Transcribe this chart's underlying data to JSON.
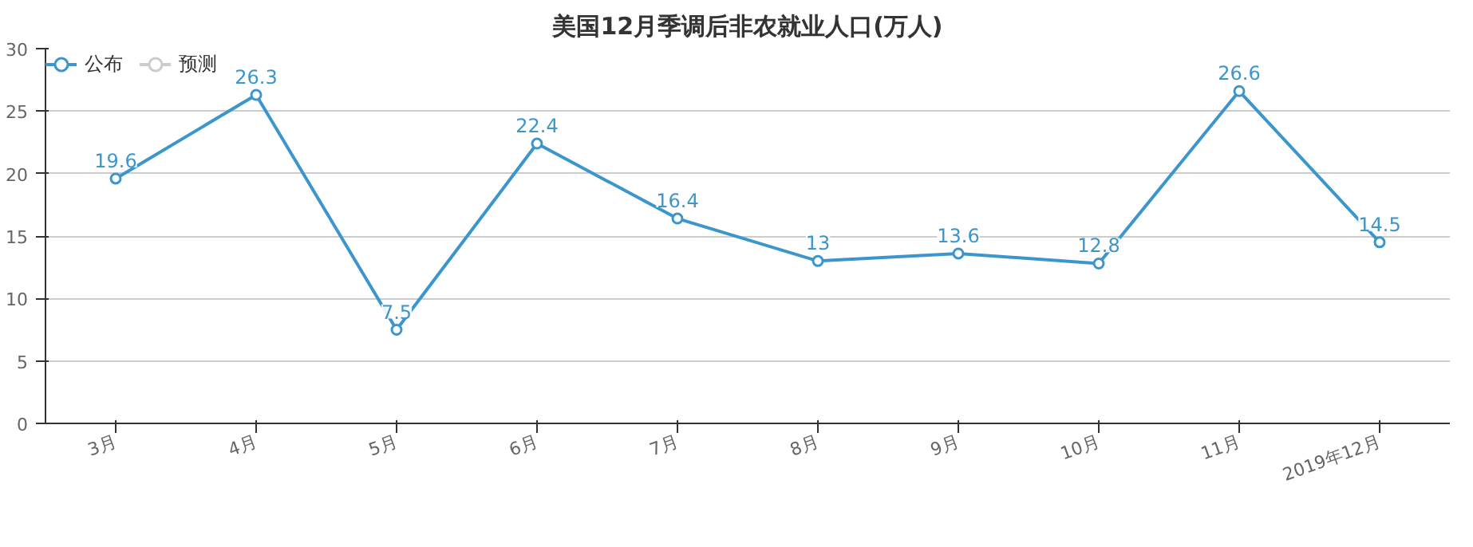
{
  "chart_data": {
    "type": "line",
    "title": "美国12月季调后非农就业人口(万人)",
    "categories": [
      "3月",
      "4月",
      "5月",
      "6月",
      "7月",
      "8月",
      "9月",
      "10月",
      "11月",
      "2019年12月"
    ],
    "series": [
      {
        "name": "公布",
        "color": "#3c96cc",
        "values": [
          19.6,
          26.3,
          7.5,
          22.4,
          16.4,
          13,
          13.6,
          12.8,
          26.6,
          14.5
        ]
      },
      {
        "name": "预测",
        "color": "#cccccc",
        "values": [
          null,
          null,
          null,
          null,
          null,
          null,
          null,
          null,
          null,
          null
        ]
      }
    ],
    "ylim": [
      0,
      30
    ],
    "yticks": [
      0,
      5,
      10,
      15,
      20,
      25,
      30
    ],
    "grid": "y",
    "legend": "top left",
    "marker": "circle",
    "line_style": "solid",
    "data_labels": true
  }
}
